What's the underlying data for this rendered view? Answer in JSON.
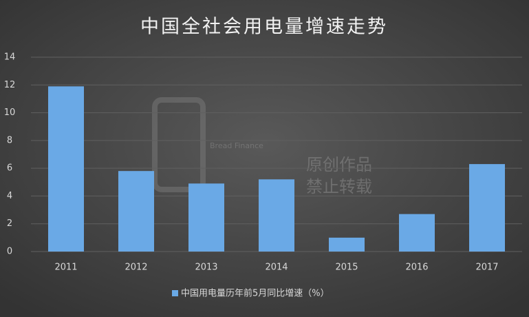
{
  "chart_data": {
    "type": "bar",
    "title": "中国全社会用电量增速走势",
    "categories": [
      "2011",
      "2012",
      "2013",
      "2014",
      "2015",
      "2016",
      "2017"
    ],
    "series": [
      {
        "name": "中国用电量历年前5月同比增速（%）",
        "color": "#6aa9e6",
        "values": [
          11.9,
          5.8,
          4.9,
          5.2,
          1.0,
          2.7,
          6.3
        ]
      }
    ],
    "ylim": [
      0,
      14
    ],
    "yticks": [
      0,
      2,
      4,
      6,
      8,
      10,
      12,
      14
    ],
    "grid": true,
    "legend": "bottom",
    "watermark": [
      "Bread Finance",
      "原创作品",
      "禁止转载"
    ]
  }
}
